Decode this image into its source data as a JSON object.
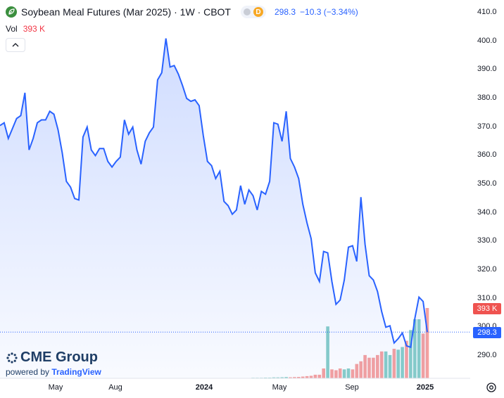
{
  "header": {
    "title": "Soybean Meal Futures (Mar 2025) · 1W · CBOT",
    "badge": "D",
    "last_value": "298.3",
    "change": "−10.3 (−3.34%)",
    "vol_label": "Vol",
    "vol_value": "393 K"
  },
  "price_axis": [
    "410.0",
    "400.0",
    "390.0",
    "380.0",
    "370.0",
    "360.0",
    "350.0",
    "340.0",
    "330.0",
    "320.0",
    "310.0",
    "300.0",
    "290.0"
  ],
  "time_axis": [
    {
      "label": "May",
      "bold": false
    },
    {
      "label": "Aug",
      "bold": false
    },
    {
      "label": "2024",
      "bold": true
    },
    {
      "label": "May",
      "bold": false
    },
    {
      "label": "Sep",
      "bold": false
    },
    {
      "label": "2025",
      "bold": true
    }
  ],
  "tags": {
    "volume": "393 K",
    "price": "298.3"
  },
  "branding": {
    "company": "CME Group",
    "powered_by": "powered by",
    "platform": "TradingView"
  },
  "icons": {
    "symbol": "leaf-icon",
    "collapse": "chevron-up-icon",
    "settings": "settings-icon"
  },
  "colors": {
    "line": "#2962ff",
    "up_volume": "#26a69a",
    "down_volume": "#ef5350"
  },
  "chart_data": {
    "type": "line",
    "title": "Soybean Meal Futures (Mar 2025) · 1W · CBOT",
    "x_ticks": [
      "May",
      "Aug",
      "2024",
      "May",
      "Sep",
      "2025"
    ],
    "ylim": [
      285,
      412
    ],
    "y_ticks": [
      290,
      300,
      310,
      320,
      330,
      340,
      350,
      360,
      370,
      380,
      390,
      400,
      410
    ],
    "last_price": 298.3,
    "series": [
      {
        "values": [
          370.5,
          371.5,
          366,
          369.5,
          373,
          374,
          382,
          362,
          366,
          371.5,
          372.5,
          372.5,
          375.5,
          374.5,
          369,
          361,
          351,
          349,
          345,
          344.5,
          366.5,
          370,
          362,
          360,
          362.5,
          362.5,
          358,
          356,
          358,
          359.5,
          372.5,
          367.5,
          370,
          362,
          357,
          365,
          368,
          370,
          386.5,
          389,
          401,
          391,
          391.5,
          388.5,
          384.5,
          380,
          379,
          379.5,
          377.5,
          367,
          358,
          356.5,
          352,
          354.5,
          344,
          342.5,
          339.5,
          341,
          349.5,
          343,
          348,
          346,
          341,
          347.5,
          346.5,
          351,
          371.5,
          371,
          365,
          375.5,
          359,
          356,
          352,
          343,
          336.5,
          331,
          319,
          316,
          326.5,
          326,
          316,
          308,
          309.5,
          316.5,
          328,
          328.5,
          323,
          345.5,
          329,
          318,
          316.5,
          312.5,
          305.5,
          300,
          300.5,
          294.5,
          296,
          298,
          293.5,
          293,
          303,
          310.5,
          309,
          298.3
        ]
      }
    ],
    "volume": {
      "unit": "K",
      "values": [
        1,
        1,
        1,
        1,
        1,
        1,
        1,
        1,
        1,
        1,
        1,
        1,
        1,
        1,
        1,
        1,
        1,
        1,
        1,
        1,
        1,
        1,
        1,
        1,
        1,
        1,
        1,
        1,
        1,
        1,
        1,
        1,
        1,
        1,
        1,
        1,
        1,
        1,
        1,
        1,
        1,
        1,
        1,
        1,
        1,
        1,
        1,
        1,
        1,
        1,
        1,
        1,
        1,
        1,
        1,
        1,
        2,
        2,
        2,
        2,
        2,
        3,
        3,
        3,
        4,
        4,
        5,
        5,
        6,
        7,
        6,
        7,
        8,
        10,
        12,
        14,
        20,
        20,
        55,
        290,
        50,
        45,
        55,
        50,
        55,
        50,
        80,
        95,
        130,
        115,
        115,
        130,
        150,
        150,
        130,
        165,
        160,
        175,
        210,
        270,
        330,
        330,
        250,
        393
      ],
      "direction": [
        "up",
        "up",
        "up",
        "up",
        "up",
        "up",
        "up",
        "up",
        "up",
        "up",
        "up",
        "up",
        "up",
        "up",
        "up",
        "up",
        "up",
        "up",
        "up",
        "up",
        "up",
        "up",
        "up",
        "up",
        "up",
        "up",
        "up",
        "up",
        "up",
        "up",
        "up",
        "up",
        "up",
        "up",
        "up",
        "up",
        "up",
        "up",
        "up",
        "up",
        "up",
        "up",
        "up",
        "up",
        "up",
        "up",
        "up",
        "up",
        "up",
        "up",
        "up",
        "up",
        "up",
        "up",
        "up",
        "up",
        "up",
        "up",
        "up",
        "up",
        "up",
        "up",
        "up",
        "up",
        "up",
        "up",
        "up",
        "up",
        "up",
        "up",
        "down",
        "down",
        "down",
        "down",
        "down",
        "down",
        "down",
        "down",
        "down",
        "up",
        "down",
        "down",
        "down",
        "up",
        "up",
        "down",
        "down",
        "down",
        "down",
        "down",
        "down",
        "down",
        "down",
        "up",
        "up",
        "down",
        "up",
        "up",
        "down",
        "up",
        "up",
        "up",
        "down",
        "down"
      ]
    }
  }
}
